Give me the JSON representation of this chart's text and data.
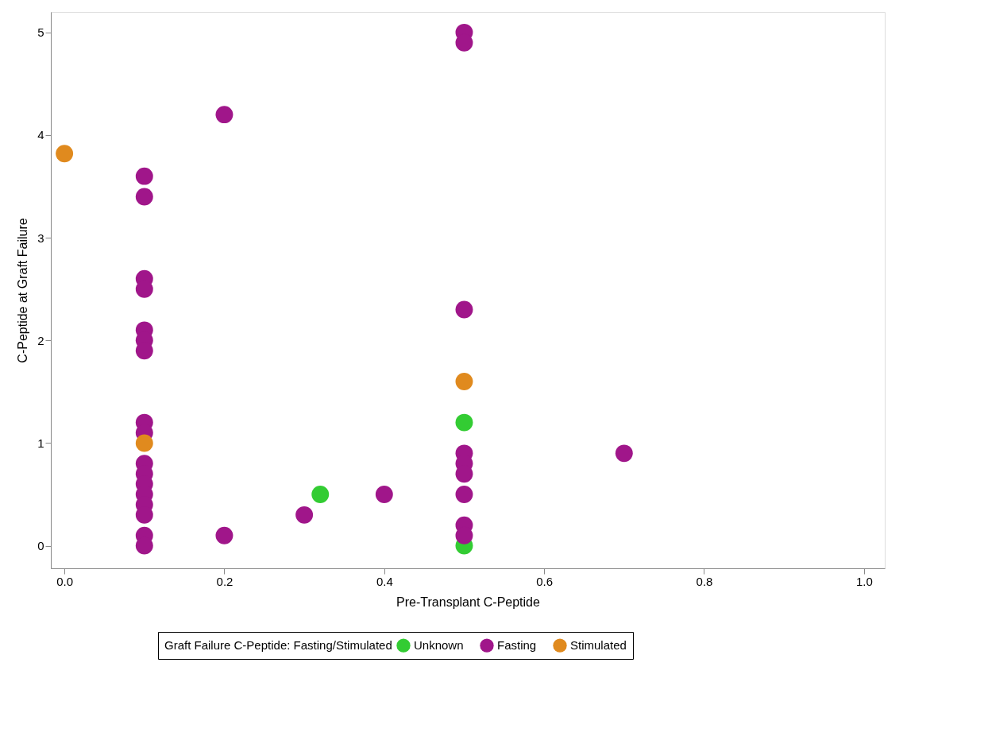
{
  "chart_data": {
    "type": "scatter",
    "xlabel": "Pre-Transplant C-Peptide",
    "ylabel": "C-Peptide at Graft Failure",
    "legend_title": "Graft Failure C-Peptide: Fasting/Stimulated",
    "xlim": [
      -0.017,
      1.026
    ],
    "ylim": [
      -0.22,
      5.2
    ],
    "xticks": [
      {
        "value": 0,
        "label": "0.0"
      },
      0.2,
      0.4,
      0.6,
      0.8,
      {
        "value": 1,
        "label": "1.0"
      }
    ],
    "yticks": [
      0,
      1,
      2,
      3,
      4,
      5
    ],
    "grid": false,
    "legend": "bottom",
    "marker": "circle",
    "series": [
      {
        "name": "Unknown",
        "color": "#33cc33",
        "x": [
          0.32,
          0.5,
          0.5
        ],
        "values": [
          0.5,
          1.2,
          0.0
        ]
      },
      {
        "name": "Fasting",
        "color": "#a0168a",
        "x": [
          0.1,
          0.1,
          0.1,
          0.1,
          0.1,
          0.1,
          0.1,
          0.1,
          0.1,
          0.1,
          0.1,
          0.1,
          0.1,
          0.1,
          0.1,
          0.1,
          0.1,
          0.5,
          0.5,
          0.5,
          0.5,
          0.5,
          0.5,
          0.5,
          0.5,
          0.5,
          0.2,
          0.2,
          0.3,
          0.4,
          0.7
        ],
        "values": [
          3.6,
          3.4,
          2.6,
          2.5,
          2.1,
          2.0,
          1.9,
          1.2,
          1.1,
          0.8,
          0.7,
          0.6,
          0.5,
          0.4,
          0.3,
          0.1,
          0.0,
          5.0,
          4.9,
          2.3,
          0.9,
          0.8,
          0.7,
          0.5,
          0.2,
          0.1,
          4.2,
          0.1,
          0.3,
          0.5,
          0.9
        ]
      },
      {
        "name": "Stimulated",
        "color": "#e08a1e",
        "x": [
          0.0,
          0.1,
          0.5
        ],
        "values": [
          3.82,
          1.0,
          1.6
        ]
      }
    ]
  }
}
